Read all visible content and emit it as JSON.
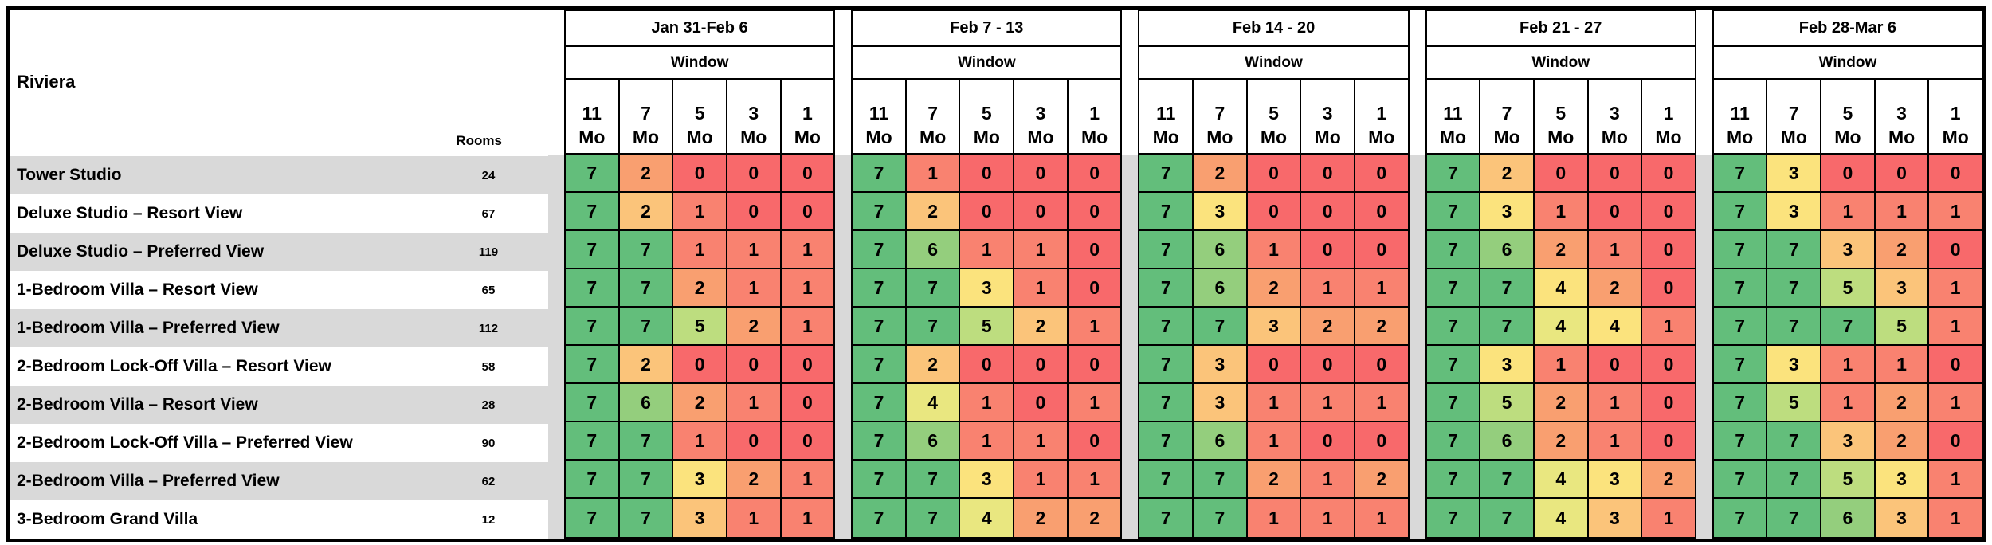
{
  "sheet": {
    "title": "Riviera",
    "rooms_header": "Rooms",
    "window_label": "Window",
    "column_months": [
      "11",
      "7",
      "5",
      "3",
      "1"
    ],
    "month_unit": "Mo",
    "group_labels": [
      "Jan 31-Feb 6",
      "Feb 7 - 13",
      "Feb 14 - 20",
      "Feb 21 - 27",
      "Feb 28-Mar 6"
    ]
  },
  "palette": {
    "G": "#63BE7B",
    "G6": "#94CE7D",
    "G5": "#BDDD7F",
    "Y4": "#E9E780",
    "Y": "#FBE37D",
    "YO": "#FBC47A",
    "O": "#F99F70",
    "S": "#F98270",
    "R": "#F8696B"
  },
  "band_color": "#D9D9D9",
  "border_color": "#000000",
  "rows": [
    {
      "label": "Tower Studio",
      "rooms": "24",
      "values": [
        [
          7,
          2,
          0,
          0,
          0
        ],
        [
          7,
          1,
          0,
          0,
          0
        ],
        [
          7,
          2,
          0,
          0,
          0
        ],
        [
          7,
          2,
          0,
          0,
          0
        ],
        [
          7,
          3,
          0,
          0,
          0
        ]
      ],
      "colors": [
        [
          "G",
          "O",
          "R",
          "R",
          "R"
        ],
        [
          "G",
          "S",
          "R",
          "R",
          "R"
        ],
        [
          "G",
          "O",
          "R",
          "R",
          "R"
        ],
        [
          "G",
          "YO",
          "R",
          "R",
          "R"
        ],
        [
          "G",
          "Y",
          "R",
          "R",
          "R"
        ]
      ]
    },
    {
      "label": "Deluxe Studio – Resort View",
      "rooms": "67",
      "values": [
        [
          7,
          2,
          1,
          0,
          0
        ],
        [
          7,
          2,
          0,
          0,
          0
        ],
        [
          7,
          3,
          0,
          0,
          0
        ],
        [
          7,
          3,
          1,
          0,
          0
        ],
        [
          7,
          3,
          1,
          1,
          1
        ]
      ],
      "colors": [
        [
          "G",
          "YO",
          "S",
          "R",
          "R"
        ],
        [
          "G",
          "YO",
          "R",
          "R",
          "R"
        ],
        [
          "G",
          "Y",
          "R",
          "R",
          "R"
        ],
        [
          "G",
          "Y",
          "S",
          "R",
          "R"
        ],
        [
          "G",
          "Y",
          "S",
          "S",
          "S"
        ]
      ]
    },
    {
      "label": "Deluxe Studio – Preferred View",
      "rooms": "119",
      "values": [
        [
          7,
          7,
          1,
          1,
          1
        ],
        [
          7,
          6,
          1,
          1,
          0
        ],
        [
          7,
          6,
          1,
          0,
          0
        ],
        [
          7,
          6,
          2,
          1,
          0
        ],
        [
          7,
          7,
          3,
          2,
          0
        ]
      ],
      "colors": [
        [
          "G",
          "G",
          "S",
          "S",
          "S"
        ],
        [
          "G",
          "G6",
          "S",
          "S",
          "R"
        ],
        [
          "G",
          "G6",
          "S",
          "R",
          "R"
        ],
        [
          "G",
          "G6",
          "O",
          "S",
          "R"
        ],
        [
          "G",
          "G",
          "YO",
          "O",
          "R"
        ]
      ]
    },
    {
      "label": "1-Bedroom Villa – Resort View",
      "rooms": "65",
      "values": [
        [
          7,
          7,
          2,
          1,
          1
        ],
        [
          7,
          7,
          3,
          1,
          0
        ],
        [
          7,
          6,
          2,
          1,
          1
        ],
        [
          7,
          7,
          4,
          2,
          0
        ],
        [
          7,
          7,
          5,
          3,
          1
        ]
      ],
      "colors": [
        [
          "G",
          "G",
          "O",
          "S",
          "S"
        ],
        [
          "G",
          "G",
          "Y",
          "S",
          "R"
        ],
        [
          "G",
          "G6",
          "O",
          "S",
          "S"
        ],
        [
          "G",
          "G",
          "Y",
          "O",
          "R"
        ],
        [
          "G",
          "G",
          "G5",
          "YO",
          "S"
        ]
      ]
    },
    {
      "label": "1-Bedroom Villa – Preferred View",
      "rooms": "112",
      "values": [
        [
          7,
          7,
          5,
          2,
          1
        ],
        [
          7,
          7,
          5,
          2,
          1
        ],
        [
          7,
          7,
          3,
          2,
          2
        ],
        [
          7,
          7,
          4,
          4,
          1
        ],
        [
          7,
          7,
          7,
          5,
          1
        ]
      ],
      "colors": [
        [
          "G",
          "G",
          "G5",
          "O",
          "S"
        ],
        [
          "G",
          "G",
          "G5",
          "YO",
          "S"
        ],
        [
          "G",
          "G",
          "YO",
          "O",
          "O"
        ],
        [
          "G",
          "G",
          "Y4",
          "Y",
          "S"
        ],
        [
          "G",
          "G",
          "G",
          "G5",
          "S"
        ]
      ]
    },
    {
      "label": "2-Bedroom Lock-Off Villa – Resort View",
      "rooms": "58",
      "values": [
        [
          7,
          2,
          0,
          0,
          0
        ],
        [
          7,
          2,
          0,
          0,
          0
        ],
        [
          7,
          3,
          0,
          0,
          0
        ],
        [
          7,
          3,
          1,
          0,
          0
        ],
        [
          7,
          3,
          1,
          1,
          0
        ]
      ],
      "colors": [
        [
          "G",
          "YO",
          "R",
          "R",
          "R"
        ],
        [
          "G",
          "YO",
          "R",
          "R",
          "R"
        ],
        [
          "G",
          "YO",
          "R",
          "R",
          "R"
        ],
        [
          "G",
          "Y",
          "S",
          "R",
          "R"
        ],
        [
          "G",
          "Y",
          "S",
          "S",
          "R"
        ]
      ]
    },
    {
      "label": "2-Bedroom Villa – Resort View",
      "rooms": "28",
      "values": [
        [
          7,
          6,
          2,
          1,
          0
        ],
        [
          7,
          4,
          1,
          0,
          1
        ],
        [
          7,
          3,
          1,
          1,
          1
        ],
        [
          7,
          5,
          2,
          1,
          0
        ],
        [
          7,
          5,
          1,
          2,
          1
        ]
      ],
      "colors": [
        [
          "G",
          "G6",
          "O",
          "S",
          "R"
        ],
        [
          "G",
          "Y4",
          "S",
          "R",
          "S"
        ],
        [
          "G",
          "YO",
          "S",
          "S",
          "S"
        ],
        [
          "G",
          "G5",
          "O",
          "S",
          "R"
        ],
        [
          "G",
          "G5",
          "S",
          "O",
          "S"
        ]
      ]
    },
    {
      "label": "2-Bedroom Lock-Off Villa – Preferred View",
      "rooms": "90",
      "values": [
        [
          7,
          7,
          1,
          0,
          0
        ],
        [
          7,
          6,
          1,
          1,
          0
        ],
        [
          7,
          6,
          1,
          0,
          0
        ],
        [
          7,
          6,
          2,
          1,
          0
        ],
        [
          7,
          7,
          3,
          2,
          0
        ]
      ],
      "colors": [
        [
          "G",
          "G",
          "S",
          "R",
          "R"
        ],
        [
          "G",
          "G6",
          "S",
          "S",
          "R"
        ],
        [
          "G",
          "G6",
          "S",
          "R",
          "R"
        ],
        [
          "G",
          "G6",
          "O",
          "S",
          "R"
        ],
        [
          "G",
          "G",
          "YO",
          "O",
          "R"
        ]
      ]
    },
    {
      "label": "2-Bedroom Villa – Preferred View",
      "rooms": "62",
      "values": [
        [
          7,
          7,
          3,
          2,
          1
        ],
        [
          7,
          7,
          3,
          1,
          1
        ],
        [
          7,
          7,
          2,
          1,
          2
        ],
        [
          7,
          7,
          4,
          3,
          2
        ],
        [
          7,
          7,
          5,
          3,
          1
        ]
      ],
      "colors": [
        [
          "G",
          "G",
          "Y",
          "O",
          "S"
        ],
        [
          "G",
          "G",
          "Y",
          "S",
          "S"
        ],
        [
          "G",
          "G",
          "O",
          "S",
          "O"
        ],
        [
          "G",
          "G",
          "Y4",
          "Y",
          "O"
        ],
        [
          "G",
          "G",
          "G5",
          "Y",
          "S"
        ]
      ]
    },
    {
      "label": "3-Bedroom Grand Villa",
      "rooms": "12",
      "values": [
        [
          7,
          7,
          3,
          1,
          1
        ],
        [
          7,
          7,
          4,
          2,
          2
        ],
        [
          7,
          7,
          1,
          1,
          1
        ],
        [
          7,
          7,
          4,
          3,
          1
        ],
        [
          7,
          7,
          6,
          3,
          1
        ]
      ],
      "colors": [
        [
          "G",
          "G",
          "YO",
          "S",
          "S"
        ],
        [
          "G",
          "G",
          "Y4",
          "O",
          "O"
        ],
        [
          "G",
          "G",
          "S",
          "S",
          "S"
        ],
        [
          "G",
          "G",
          "Y4",
          "YO",
          "S"
        ],
        [
          "G",
          "G",
          "G6",
          "YO",
          "S"
        ]
      ]
    }
  ]
}
